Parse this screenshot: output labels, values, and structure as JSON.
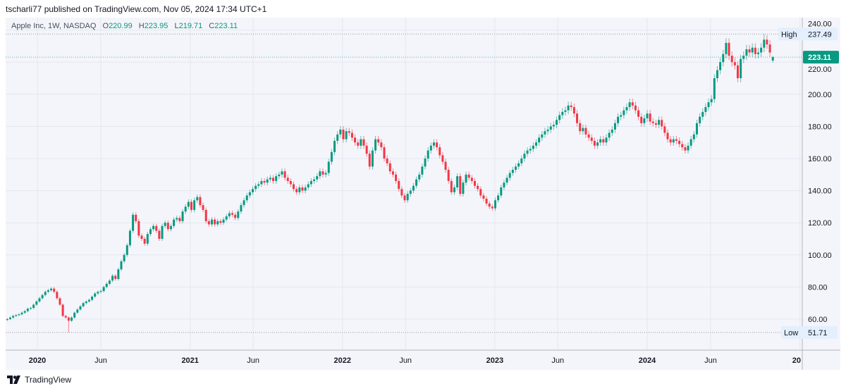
{
  "header": {
    "published": "tscharli77 published on TradingView.com, Nov 05, 2024 17:34 UTC+1"
  },
  "legend": {
    "symbol": "Apple Inc, 1W, NASDAQ",
    "open_label": "O",
    "open": "220.99",
    "high_label": "H",
    "high": "223.95",
    "low_label": "L",
    "low": "219.71",
    "close_label": "C",
    "close": "223.11"
  },
  "footer": {
    "brand": "TradingView"
  },
  "colors": {
    "up": "#089981",
    "down": "#F23645",
    "background": "#F4F5FA",
    "grid": "#E4E7F1",
    "hl_label_bg": "#E3EFFD"
  },
  "chart_data": {
    "type": "candlestick",
    "interval": "1W",
    "x_start": "2019-10-21",
    "y_ticks": [
      60,
      80,
      100,
      120,
      140,
      160,
      180,
      200,
      220,
      240
    ],
    "y_tick_labels": [
      "60.00",
      "80.00",
      "100.00",
      "120.00",
      "140.00",
      "160.00",
      "180.00",
      "200.00",
      "220.00",
      "240.00"
    ],
    "ylim": [
      45,
      243
    ],
    "x_ticks": [
      {
        "label": "2020",
        "date": "2020-01-01",
        "year": true
      },
      {
        "label": "Jun",
        "date": "2020-06-01",
        "year": false
      },
      {
        "label": "2021",
        "date": "2021-01-01",
        "year": true
      },
      {
        "label": "Jun",
        "date": "2021-06-01",
        "year": false
      },
      {
        "label": "2022",
        "date": "2022-01-01",
        "year": true
      },
      {
        "label": "Jun",
        "date": "2022-06-01",
        "year": false
      },
      {
        "label": "2023",
        "date": "2023-01-01",
        "year": true
      },
      {
        "label": "Jun",
        "date": "2023-06-01",
        "year": false
      },
      {
        "label": "2024",
        "date": "2024-01-01",
        "year": true
      },
      {
        "label": "Jun",
        "date": "2024-06-01",
        "year": false
      },
      {
        "label": "20",
        "date": "2025-01-01",
        "year": true
      }
    ],
    "first_open": 59.5,
    "close": [
      60,
      61,
      62,
      62.5,
      63,
      64,
      65,
      66.5,
      67,
      69,
      71,
      73,
      75,
      77,
      78,
      79,
      77,
      73,
      69,
      62,
      61,
      59,
      61,
      64,
      66,
      68,
      70,
      71,
      72,
      74,
      76,
      77,
      77.5,
      80,
      82,
      84,
      87,
      85,
      91,
      96,
      100,
      106,
      115,
      125,
      121,
      112,
      110,
      107,
      113,
      116,
      118,
      115,
      110,
      118,
      120,
      116,
      118,
      122,
      123,
      121,
      127,
      130,
      133,
      128,
      134,
      136,
      131,
      128,
      121,
      119,
      122,
      119,
      121,
      120,
      122,
      124,
      126,
      125,
      123,
      127,
      131,
      134,
      137,
      139,
      141,
      143,
      144,
      146,
      145,
      147,
      148,
      146,
      149,
      150,
      152,
      148,
      146,
      144,
      141,
      139,
      142,
      140,
      142,
      144,
      146,
      147,
      149,
      152,
      150,
      151,
      158,
      164,
      171,
      175,
      178,
      172,
      177,
      176,
      173,
      170,
      168,
      172,
      168,
      163,
      155,
      165,
      172,
      170,
      167,
      160,
      157,
      152,
      150,
      146,
      141,
      137,
      134,
      138,
      140,
      143,
      147,
      150,
      155,
      160,
      165,
      168,
      170,
      167,
      162,
      158,
      153,
      146,
      139,
      142,
      149,
      138,
      145,
      150,
      148,
      146,
      143,
      141,
      137,
      135,
      132,
      130,
      129,
      134,
      137,
      142,
      145,
      148,
      151,
      153,
      155,
      157,
      160,
      163,
      165,
      166,
      168,
      170,
      173,
      175,
      177,
      178,
      180,
      181,
      184,
      187,
      189,
      190,
      193,
      192,
      188,
      182,
      177,
      179,
      175,
      173,
      171,
      168,
      170,
      172,
      170,
      173,
      176,
      178,
      182,
      186,
      187,
      190,
      192,
      195,
      193,
      190,
      186,
      182,
      185,
      188,
      183,
      182,
      181,
      184,
      180,
      176,
      172,
      170,
      172,
      171,
      169,
      167,
      165,
      168,
      172,
      175,
      182,
      186,
      189,
      192,
      195,
      197,
      210,
      215,
      220,
      225,
      232,
      224,
      220,
      218,
      210,
      222,
      224,
      228,
      226,
      229,
      225,
      226,
      229,
      234,
      231,
      226,
      223.11
    ],
    "last_candle": {
      "open": 220.99,
      "high": 223.95,
      "low": 219.71,
      "close": 223.11
    },
    "high": {
      "label": "High",
      "value": 237.49,
      "text": "237.49"
    },
    "low": {
      "label": "Low",
      "value": 51.71,
      "text": "51.71"
    },
    "last_price": {
      "value": 223.11,
      "text": "223.11"
    },
    "grid": true
  }
}
